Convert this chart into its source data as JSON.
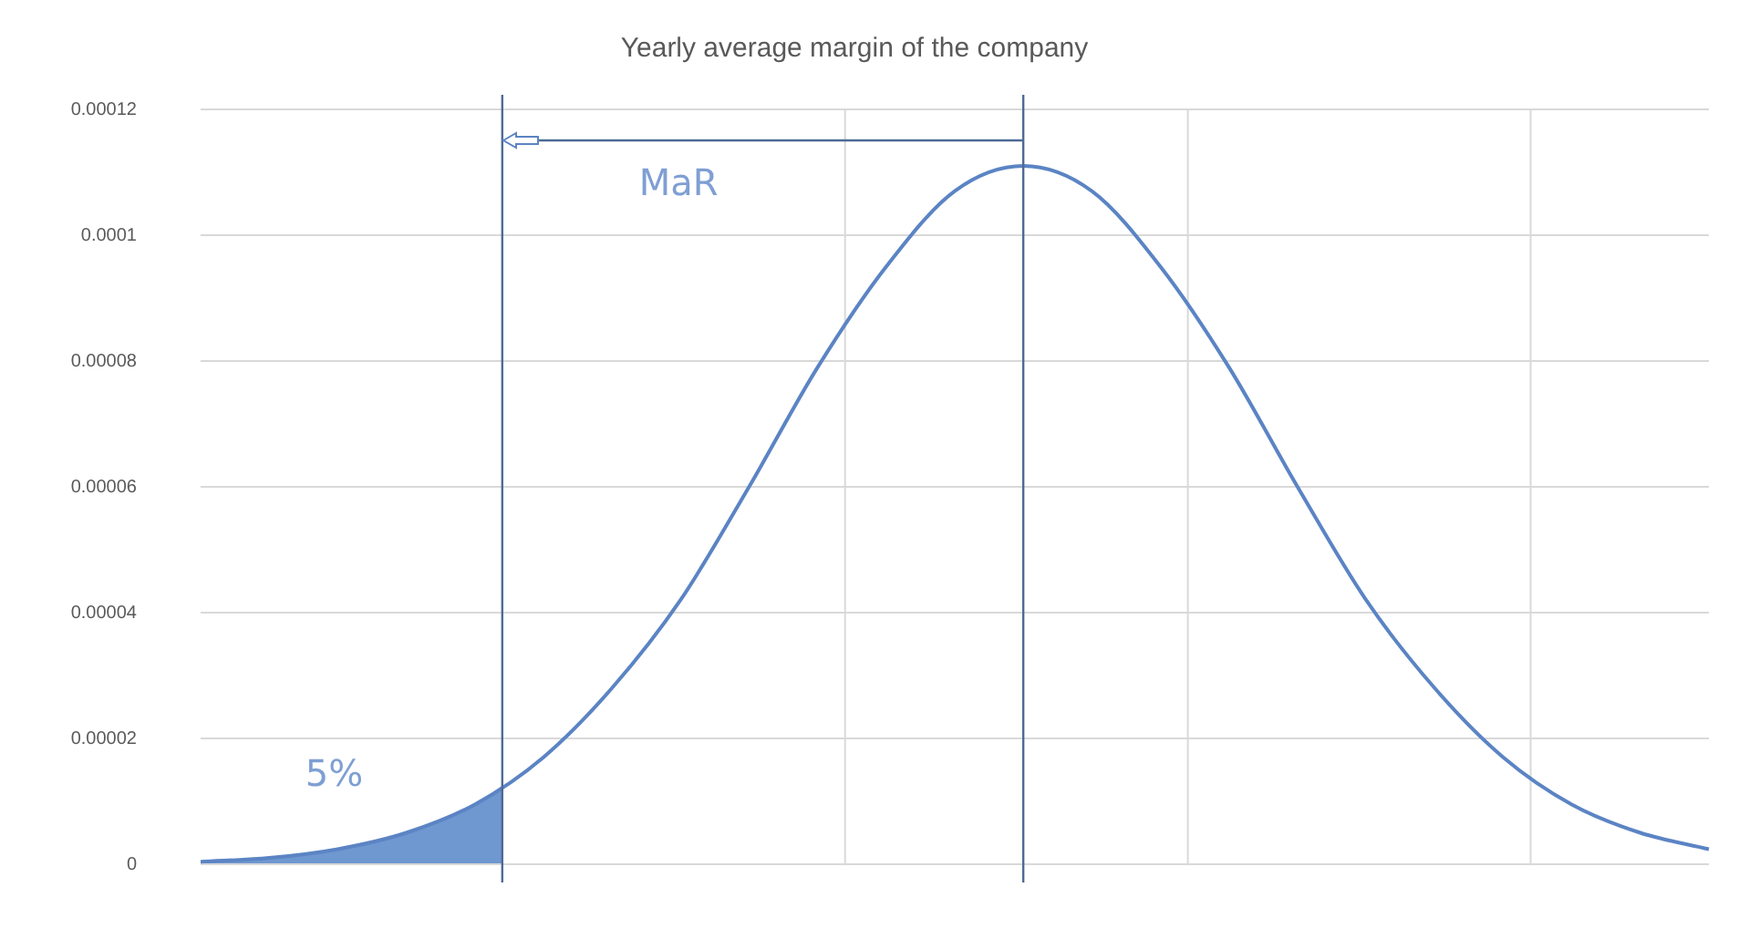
{
  "chart_data": {
    "type": "line",
    "title": "Yearly average margin of the company",
    "categories": [
      null,
      null,
      null,
      null,
      null,
      null,
      null,
      null,
      null,
      null,
      null,
      null,
      null,
      null,
      null,
      null,
      null,
      null,
      null,
      null,
      null,
      null,
      null
    ],
    "ylim": [
      0,
      0.00012
    ],
    "yticks": [
      {
        "value": 0,
        "label": "0"
      },
      {
        "value": 2e-05,
        "label": "0.00002"
      },
      {
        "value": 4e-05,
        "label": "0.00004"
      },
      {
        "value": 6e-05,
        "label": "0.00006"
      },
      {
        "value": 8e-05,
        "label": "0.00008"
      },
      {
        "value": 0.0001,
        "label": "0.0001"
      },
      {
        "value": 0.00012,
        "label": "0.00012"
      }
    ],
    "tick_labels": "y",
    "grid": "y",
    "legend": false,
    "marker": "none",
    "line_style": "solid",
    "series": [
      {
        "color": "#5b84c4",
        "values": [
          4e-07,
          1e-06,
          2.4e-06,
          5e-06,
          9.5e-06,
          1.7e-05,
          2.8e-05,
          4.2e-05,
          6e-05,
          7.9e-05,
          9.5e-05,
          0.000107,
          0.000111,
          0.000107,
          9.5e-05,
          7.9e-05,
          6e-05,
          4.2e-05,
          2.8e-05,
          1.7e-05,
          9.5e-06,
          5e-06,
          2.4e-06
        ]
      }
    ],
    "annotations": [
      "MaR",
      "5%"
    ]
  }
}
